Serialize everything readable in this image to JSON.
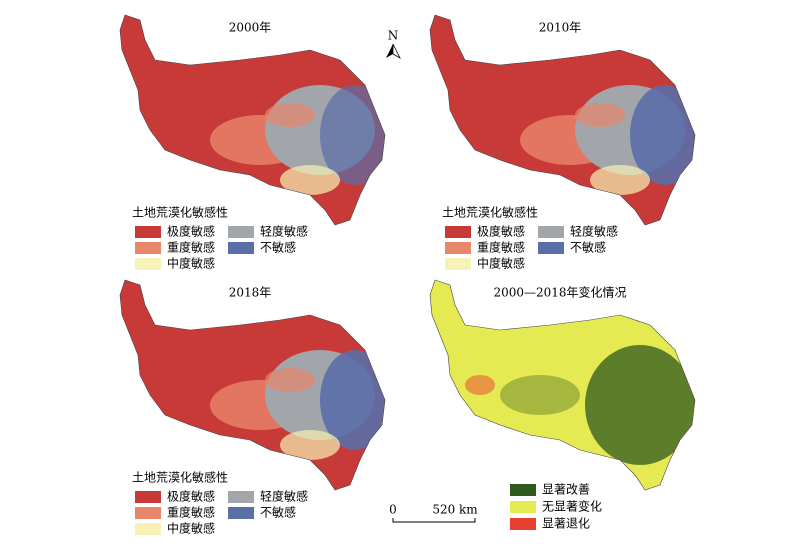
{
  "panels": [
    {
      "title": "2000年",
      "legend": {
        "title": "土地荒漠化敏感性",
        "items": [
          {
            "label": "极度敏感",
            "color": "#c83a38"
          },
          {
            "label": "重度敏感",
            "color": "#e8866a"
          },
          {
            "label": "中度敏感",
            "color": "#f6f1b4"
          },
          {
            "label": "轻度敏感",
            "color": "#a2a6aa"
          },
          {
            "label": "不敏感",
            "color": "#5a6ea8"
          }
        ]
      }
    },
    {
      "title": "2010年",
      "legend": {
        "title": "土地荒漠化敏感性",
        "items": [
          {
            "label": "极度敏感",
            "color": "#c83a38"
          },
          {
            "label": "重度敏感",
            "color": "#e8866a"
          },
          {
            "label": "中度敏感",
            "color": "#f6f1b4"
          },
          {
            "label": "轻度敏感",
            "color": "#a2a6aa"
          },
          {
            "label": "不敏感",
            "color": "#5a6ea8"
          }
        ]
      }
    },
    {
      "title": "2018年",
      "legend": {
        "title": "土地荒漠化敏感性",
        "items": [
          {
            "label": "极度敏感",
            "color": "#c83a38"
          },
          {
            "label": "重度敏感",
            "color": "#e8866a"
          },
          {
            "label": "中度敏感",
            "color": "#f6f1b4"
          },
          {
            "label": "轻度敏感",
            "color": "#a2a6aa"
          },
          {
            "label": "不敏感",
            "color": "#5a6ea8"
          }
        ]
      }
    },
    {
      "title": "2000—2018年变化情况",
      "legend": {
        "items": [
          {
            "label": "显著改善",
            "color": "#2e5a1e"
          },
          {
            "label": "无显著变化",
            "color": "#e6ea52"
          },
          {
            "label": "显著退化",
            "color": "#e84030"
          }
        ]
      }
    }
  ],
  "north": "N",
  "scale": {
    "labels": [
      "0",
      "520 km"
    ]
  }
}
